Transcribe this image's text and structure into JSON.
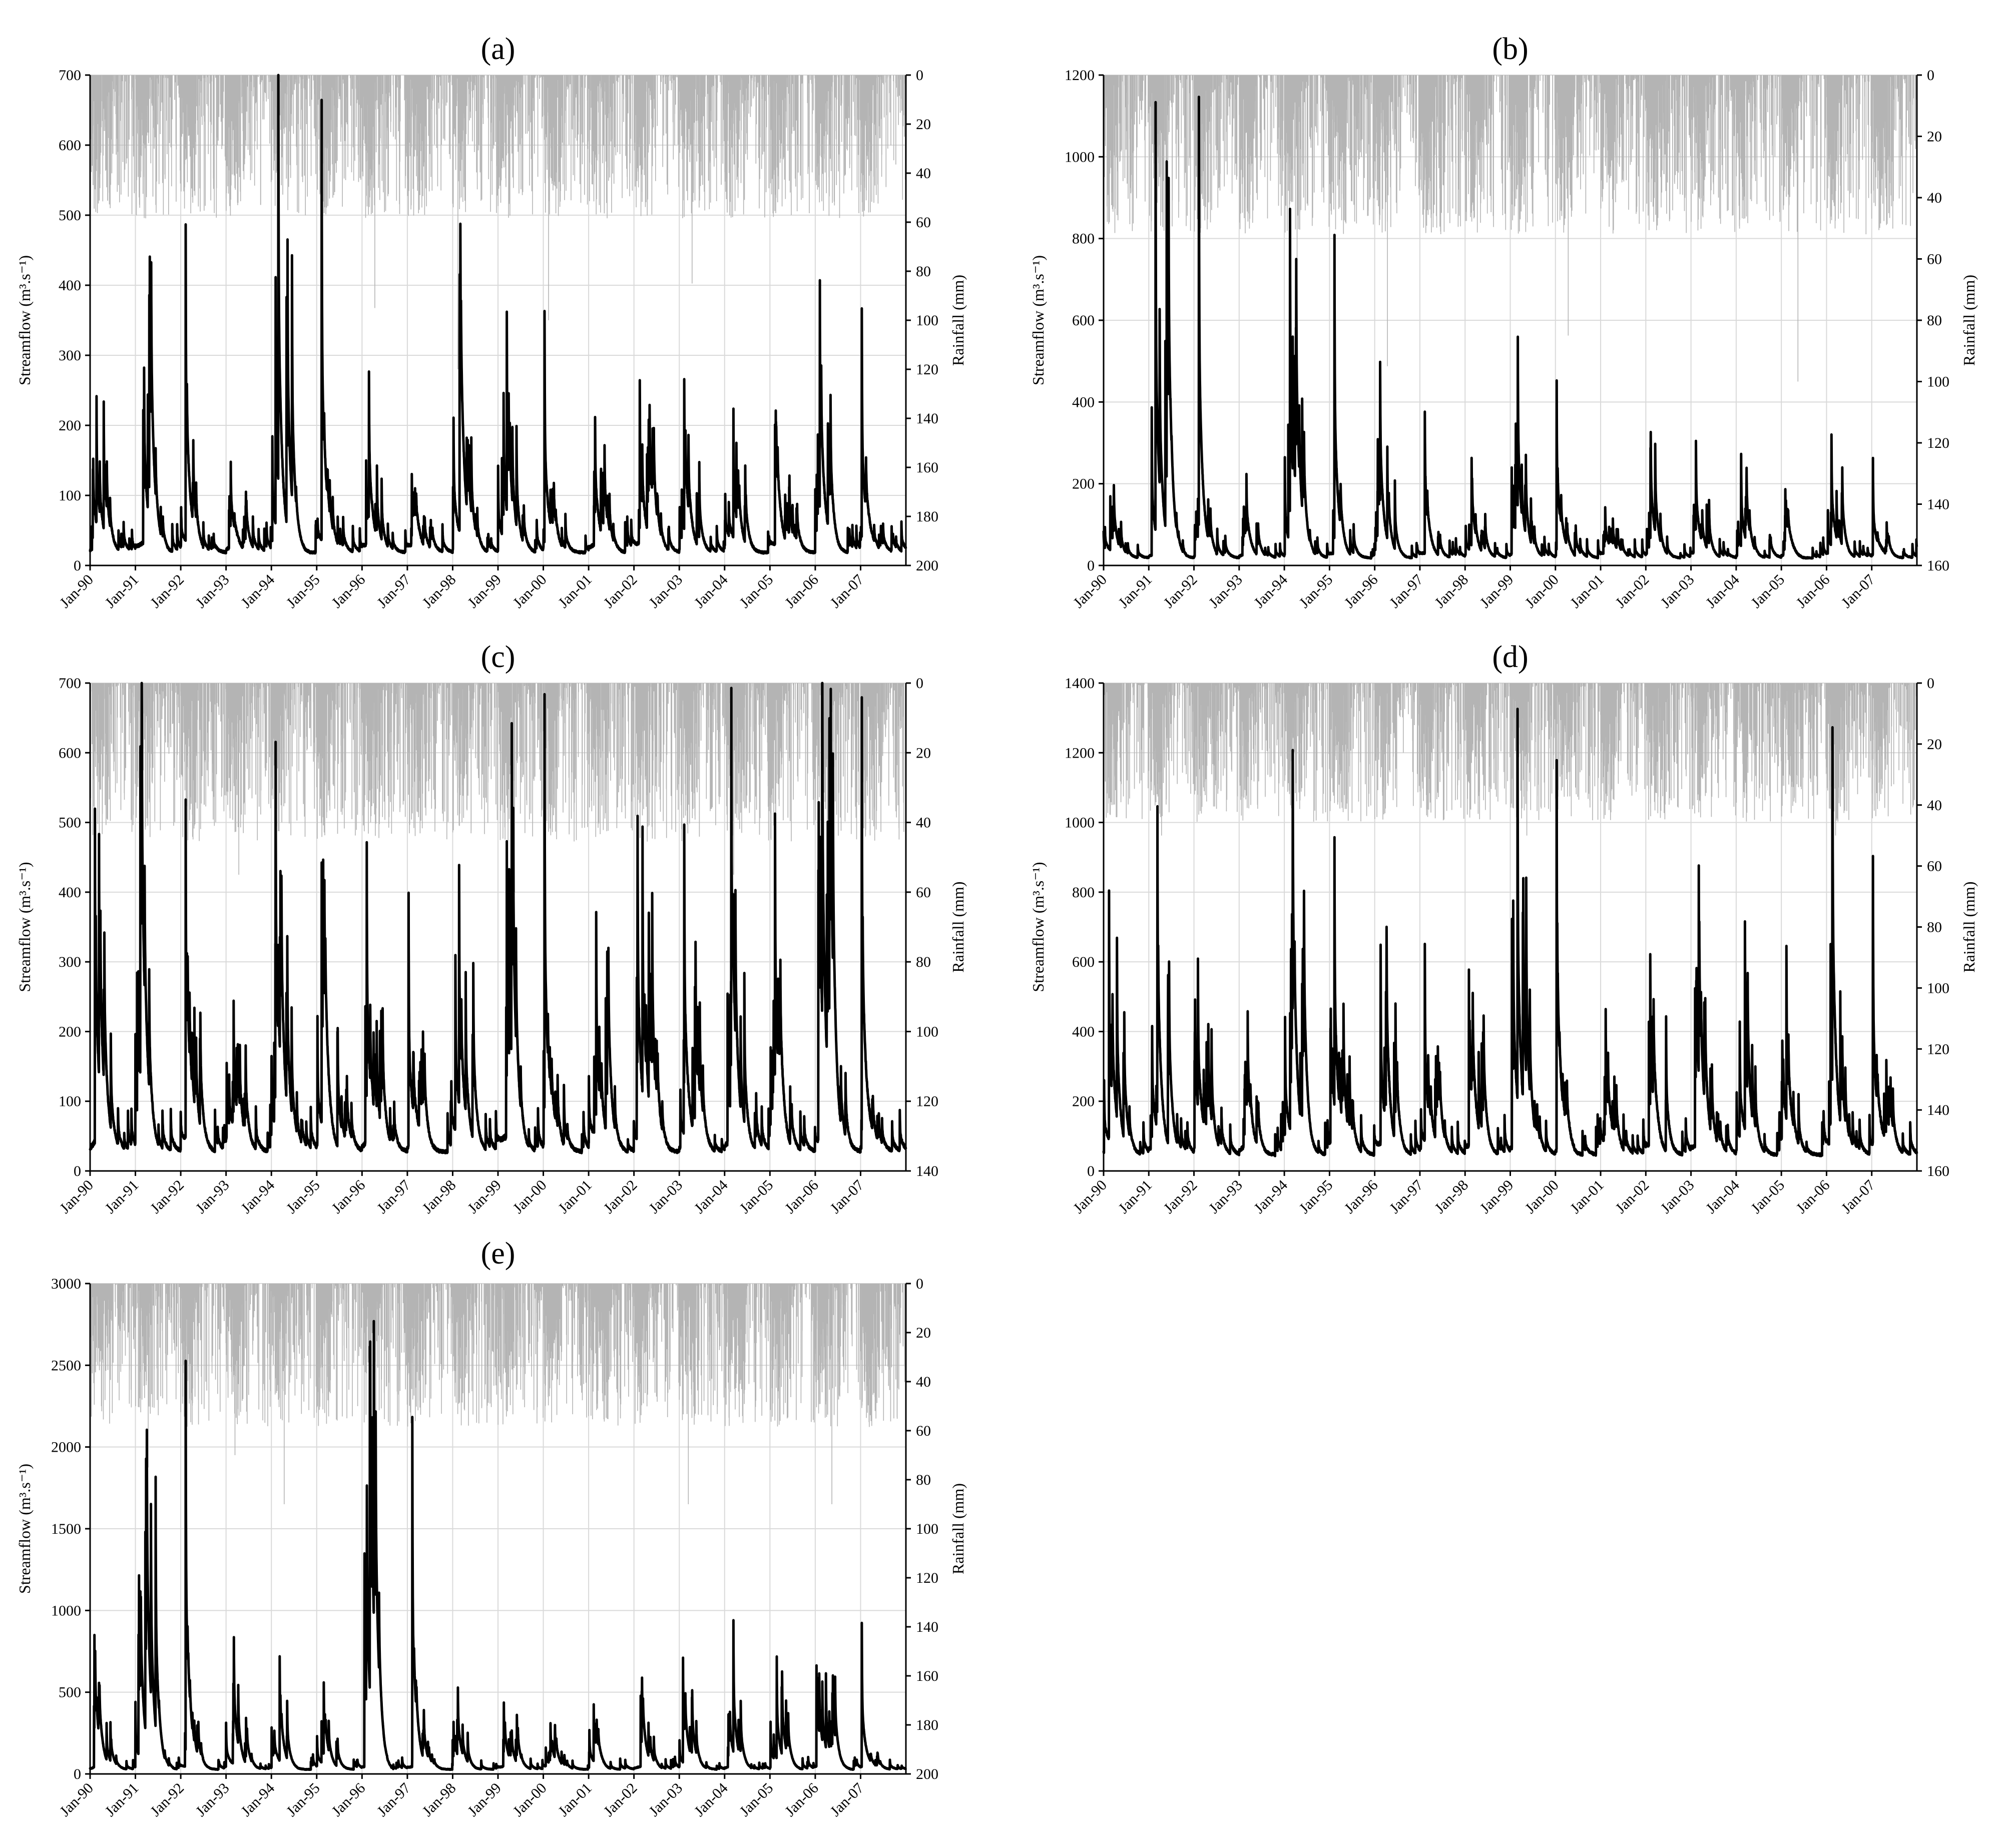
{
  "figure": {
    "x_tick_labels": [
      "Jan-90",
      "Jan-91",
      "Jan-92",
      "Jan-93",
      "Jan-94",
      "Jan-95",
      "Jan-96",
      "Jan-97",
      "Jan-98",
      "Jan-99",
      "Jan-00",
      "Jan-01",
      "Jan-02",
      "Jan-03",
      "Jan-04",
      "Jan-05",
      "Jan-06",
      "Jan-07"
    ],
    "colors": {
      "streamflow": "#000000",
      "rainfall": "#b4b4b4",
      "grid": "#d9d9d9"
    }
  },
  "chart_data": [
    {
      "panel": "(a)",
      "type": "line",
      "x_start": "1990-01",
      "x_end": "2007-12",
      "y_label": "Streamflow (m³.s⁻¹)",
      "y_ticks": [
        0,
        100,
        200,
        300,
        400,
        500,
        600,
        700
      ],
      "ylim": [
        0,
        700
      ],
      "y2_label": "Rainfall (mm)",
      "y2_ticks": [
        0,
        20,
        40,
        60,
        80,
        100,
        120,
        140,
        160,
        180,
        200
      ],
      "y2lim": [
        200,
        0
      ],
      "series": [
        {
          "type": "line",
          "baseflow": 20,
          "annual_peak": [
            200,
            470,
            150,
            110,
            645,
            110,
            195,
            110,
            300,
            350,
            110,
            155,
            235,
            200,
            190,
            120,
            345,
            60
          ],
          "notable_peaks": [
            {
              "date": "1991-03",
              "value": 200
            },
            {
              "date": "1992-02",
              "value": 470
            },
            {
              "date": "1995-02",
              "value": 645
            },
            {
              "date": "1999-03",
              "value": 300
            },
            {
              "date": "2000-01",
              "value": 350
            },
            {
              "date": "2003-02",
              "value": 235
            },
            {
              "date": "2004-03",
              "value": 200
            },
            {
              "date": "2005-02",
              "value": 190
            },
            {
              "date": "2007-01",
              "value": 345
            }
          ]
        },
        {
          "type": "bar",
          "inverted": true,
          "typical_max": 45,
          "max_events": [
            {
              "date": "1996-04",
              "value": 95
            },
            {
              "date": "1998-02",
              "value": 120
            },
            {
              "date": "2000-02",
              "value": 100
            },
            {
              "date": "2003-04",
              "value": 85
            }
          ]
        }
      ]
    },
    {
      "panel": "(b)",
      "type": "line",
      "x_start": "1990-01",
      "x_end": "2007-12",
      "y_label": "Streamflow (m³.s⁻¹)",
      "y_ticks": [
        0,
        200,
        400,
        600,
        800,
        1000,
        1200
      ],
      "ylim": [
        0,
        1200
      ],
      "y2_label": "Rainfall (mm)",
      "y2_ticks": [
        0,
        20,
        40,
        60,
        80,
        100,
        120,
        140,
        160
      ],
      "y2lim": [
        160,
        0
      ],
      "series": [
        {
          "type": "line",
          "baseflow": 20,
          "annual_peak": [
            150,
            1070,
            150,
            160,
            760,
            215,
            365,
            130,
            185,
            435,
            125,
            105,
            240,
            245,
            130,
            110,
            255,
            60
          ],
          "notable_peaks": [
            {
              "date": "1992-02",
              "value": 1070
            },
            {
              "date": "1995-02",
              "value": 760
            },
            {
              "date": "1997-02",
              "value": 365
            },
            {
              "date": "2000-01",
              "value": 435
            },
            {
              "date": "2003-02",
              "value": 240
            },
            {
              "date": "2004-02",
              "value": 245
            },
            {
              "date": "2007-01",
              "value": 255
            }
          ]
        },
        {
          "type": "bar",
          "inverted": true,
          "typical_max": 40,
          "max_events": [
            {
              "date": "1994-04",
              "value": 90
            },
            {
              "date": "1996-04",
              "value": 95
            },
            {
              "date": "2000-04",
              "value": 85
            },
            {
              "date": "2005-05",
              "value": 100
            }
          ]
        }
      ]
    },
    {
      "panel": "(c)",
      "type": "line",
      "x_start": "1990-01",
      "x_end": "2007-12",
      "y_label": "Streamflow (m³.s⁻¹)",
      "y_ticks": [
        0,
        100,
        200,
        300,
        400,
        500,
        600,
        700
      ],
      "ylim": [
        0,
        700
      ],
      "y2_label": "Rainfall (mm)",
      "y2_ticks": [
        0,
        20,
        40,
        60,
        80,
        100,
        120,
        140
      ],
      "y2lim": [
        140,
        0
      ],
      "series": [
        {
          "type": "line",
          "baseflow": 30,
          "annual_peak": [
            505,
            515,
            230,
            185,
            400,
            295,
            395,
            180,
            375,
            625,
            155,
            320,
            410,
            330,
            410,
            220,
            655,
            150
          ],
          "notable_peaks": [
            {
              "date": "1991-02",
              "value": 505
            },
            {
              "date": "1992-02",
              "value": 515
            },
            {
              "date": "1995-02",
              "value": 400
            },
            {
              "date": "1997-01",
              "value": 395
            },
            {
              "date": "1999-03",
              "value": 375
            },
            {
              "date": "2000-01",
              "value": 625
            },
            {
              "date": "2003-02",
              "value": 410
            },
            {
              "date": "2005-02",
              "value": 410
            },
            {
              "date": "2007-01",
              "value": 655
            }
          ]
        },
        {
          "type": "bar",
          "inverted": true,
          "typical_max": 35,
          "max_events": [
            {
              "date": "1993-04",
              "value": 55
            },
            {
              "date": "1999-05",
              "value": 60
            },
            {
              "date": "2004-03",
              "value": 55
            }
          ]
        }
      ]
    },
    {
      "panel": "(d)",
      "type": "line",
      "x_start": "1990-01",
      "x_end": "2007-12",
      "y_label": "Streamflow (m³.s⁻¹)",
      "y_ticks": [
        0,
        200,
        400,
        600,
        800,
        1000,
        1200,
        1400
      ],
      "ylim": [
        0,
        1400
      ],
      "y2_label": "Rainfall (mm)",
      "y2_ticks": [
        0,
        20,
        40,
        60,
        80,
        100,
        120,
        140,
        160
      ],
      "y2lim": [
        160,
        0
      ],
      "series": [
        {
          "type": "line",
          "baseflow": 50,
          "annual_peak": [
            760,
            570,
            475,
            310,
            820,
            570,
            615,
            300,
            475,
            1170,
            260,
            355,
            490,
            650,
            545,
            465,
            880,
            290
          ],
          "notable_peaks": [
            {
              "date": "1991-03",
              "value": 760
            },
            {
              "date": "1995-02",
              "value": 820
            },
            {
              "date": "1997-02",
              "value": 615
            },
            {
              "date": "2000-01",
              "value": 1170
            },
            {
              "date": "2004-03",
              "value": 650
            },
            {
              "date": "2005-02",
              "value": 545
            },
            {
              "date": "2007-01",
              "value": 880
            }
          ]
        },
        {
          "type": "bar",
          "inverted": true,
          "typical_max": 35,
          "max_events": [
            {
              "date": "1991-04",
              "value": 50
            },
            {
              "date": "1999-05",
              "value": 50
            },
            {
              "date": "2006-03",
              "value": 50
            }
          ]
        }
      ]
    },
    {
      "panel": "(e)",
      "type": "line",
      "x_start": "1990-01",
      "x_end": "2007-12",
      "y_label": "Streamflow (m³.s⁻¹)",
      "y_ticks": [
        0,
        500,
        1000,
        1500,
        2000,
        2500,
        3000
      ],
      "ylim": [
        0,
        3000
      ],
      "y2_label": "Rainfall (mm)",
      "y2_ticks": [
        0,
        20,
        40,
        60,
        80,
        100,
        120,
        140,
        160,
        180,
        200
      ],
      "y2lim": [
        200,
        0
      ],
      "series": [
        {
          "type": "line",
          "baseflow": 30,
          "annual_peak": [
            630,
            2420,
            300,
            530,
            400,
            470,
            2130,
            320,
            360,
            340,
            230,
            380,
            460,
            670,
            620,
            650,
            910,
            110
          ],
          "notable_peaks": [
            {
              "date": "1991-02",
              "value": 630
            },
            {
              "date": "1992-02",
              "value": 2420
            },
            {
              "date": "1997-02",
              "value": 2130
            },
            {
              "date": "2004-03",
              "value": 670
            },
            {
              "date": "2006-01",
              "value": 650
            },
            {
              "date": "2007-01",
              "value": 910
            }
          ]
        },
        {
          "type": "bar",
          "inverted": true,
          "typical_max": 45,
          "max_events": [
            {
              "date": "1991-04",
              "value": 75
            },
            {
              "date": "1993-03",
              "value": 70
            },
            {
              "date": "1994-04",
              "value": 90
            },
            {
              "date": "2003-03",
              "value": 90
            },
            {
              "date": "2006-05",
              "value": 90
            }
          ]
        }
      ]
    }
  ]
}
